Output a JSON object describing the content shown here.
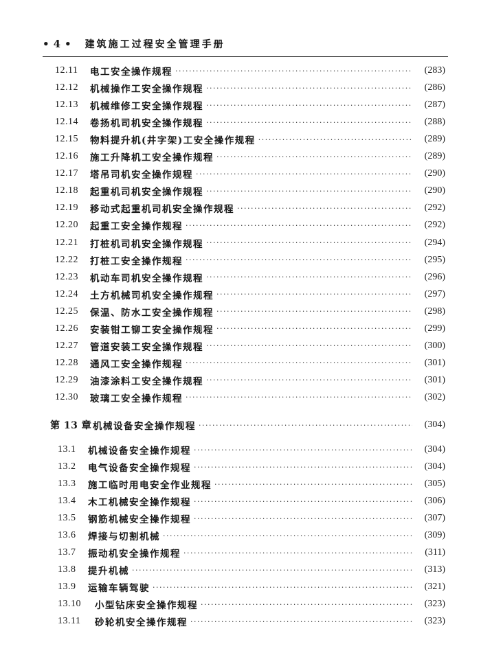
{
  "header": {
    "page_number": "4",
    "book_title": "建筑施工过程安全管理手册"
  },
  "sections_12": [
    {
      "num": "12.11",
      "title": "电工安全操作规程",
      "page": "(283)"
    },
    {
      "num": "12.12",
      "title": "机械操作工安全操作规程",
      "page": "(286)"
    },
    {
      "num": "12.13",
      "title": "机械维修工安全操作规程",
      "page": "(287)"
    },
    {
      "num": "12.14",
      "title": "卷扬机司机安全操作规程",
      "page": "(288)"
    },
    {
      "num": "12.15",
      "title": "物料提升机(井字架)工安全操作规程",
      "page": "(289)"
    },
    {
      "num": "12.16",
      "title": "施工升降机工安全操作规程",
      "page": "(289)"
    },
    {
      "num": "12.17",
      "title": "塔吊司机安全操作规程",
      "page": "(290)"
    },
    {
      "num": "12.18",
      "title": "起重机司机安全操作规程",
      "page": "(290)"
    },
    {
      "num": "12.19",
      "title": "移动式起重机司机安全操作规程",
      "page": "(292)"
    },
    {
      "num": "12.20",
      "title": "起重工安全操作规程",
      "page": "(292)"
    },
    {
      "num": "12.21",
      "title": "打桩机司机安全操作规程",
      "page": "(294)"
    },
    {
      "num": "12.22",
      "title": "打桩工安全操作规程",
      "page": "(295)"
    },
    {
      "num": "12.23",
      "title": "机动车司机安全操作规程",
      "page": "(296)"
    },
    {
      "num": "12.24",
      "title": "土方机械司机安全操作规程",
      "page": "(297)"
    },
    {
      "num": "12.25",
      "title": "保温、防水工安全操作规程",
      "page": "(298)"
    },
    {
      "num": "12.26",
      "title": "安装钳工铆工安全操作规程",
      "page": "(299)"
    },
    {
      "num": "12.27",
      "title": "管道安装工安全操作规程",
      "page": "(300)"
    },
    {
      "num": "12.28",
      "title": "通风工安全操作规程",
      "page": "(301)"
    },
    {
      "num": "12.29",
      "title": "油漆涂料工安全操作规程",
      "page": "(301)"
    },
    {
      "num": "12.30",
      "title": "玻璃工安全操作规程",
      "page": "(302)"
    }
  ],
  "chapter_13": {
    "num": "第 13 章",
    "title": "机械设备安全操作规程",
    "page": "(304)"
  },
  "sections_13": [
    {
      "num": "13.1",
      "title": "机械设备安全操作规程",
      "page": "(304)"
    },
    {
      "num": "13.2",
      "title": "电气设备安全操作规程",
      "page": "(304)"
    },
    {
      "num": "13.3",
      "title": "施工临时用电安全作业规程",
      "page": "(305)"
    },
    {
      "num": "13.4",
      "title": "木工机械安全操作规程",
      "page": "(306)"
    },
    {
      "num": "13.5",
      "title": "钢筋机械安全操作规程",
      "page": "(307)"
    },
    {
      "num": "13.6",
      "title": "焊接与切割机械",
      "page": "(309)"
    },
    {
      "num": "13.7",
      "title": "振动机安全操作规程",
      "page": "(311)"
    },
    {
      "num": "13.8",
      "title": "提升机械",
      "page": "(313)"
    },
    {
      "num": "13.9",
      "title": "运输车辆驾驶",
      "page": "(321)"
    },
    {
      "num": "13.10",
      "title": "小型钻床安全操作规程",
      "page": "(323)"
    },
    {
      "num": "13.11",
      "title": "砂轮机安全操作规程",
      "page": "(323)"
    }
  ]
}
